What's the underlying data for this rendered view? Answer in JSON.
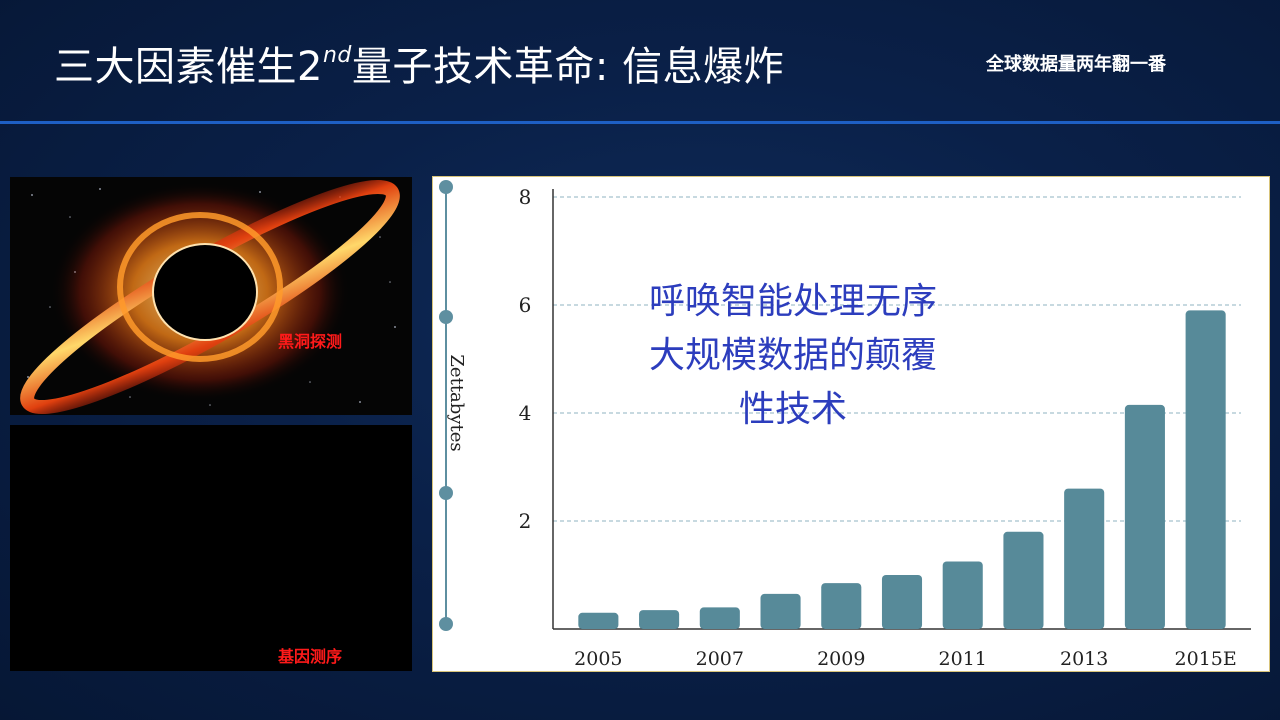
{
  "slide": {
    "title_prefix": "三大因素催生2",
    "title_sup": "nd",
    "title_suffix": "量子技术革命: 信息爆炸",
    "subtitle": "全球数据量两年翻一番"
  },
  "panels": {
    "blackhole_label": "黑洞探测",
    "genome_label": "基因测序"
  },
  "overlay": {
    "lines": [
      "呼唤智能处理无序",
      "大规模数据的颠覆",
      "性技术"
    ]
  },
  "colors": {
    "bar": "#578a99",
    "grid": "#8fb3c2",
    "overlay_text": "#2c3dbd",
    "panel_label": "#ff1a1a"
  },
  "chart_data": {
    "type": "bar",
    "title": "",
    "xlabel": "",
    "ylabel": "Zettabytes",
    "categories": [
      "2005",
      "2006",
      "2007",
      "2008",
      "2009",
      "2010",
      "2011",
      "2012",
      "2013",
      "2014",
      "2015E"
    ],
    "x_tick_labels": [
      "2005",
      "2007",
      "2009",
      "2011",
      "2013",
      "2015E"
    ],
    "values": [
      0.3,
      0.35,
      0.4,
      0.65,
      0.85,
      1.0,
      1.25,
      1.8,
      2.6,
      4.15,
      5.9
    ],
    "ylim": [
      0,
      8
    ],
    "y_ticks": [
      2,
      4,
      6,
      8
    ],
    "grid": true,
    "legend": "none"
  }
}
